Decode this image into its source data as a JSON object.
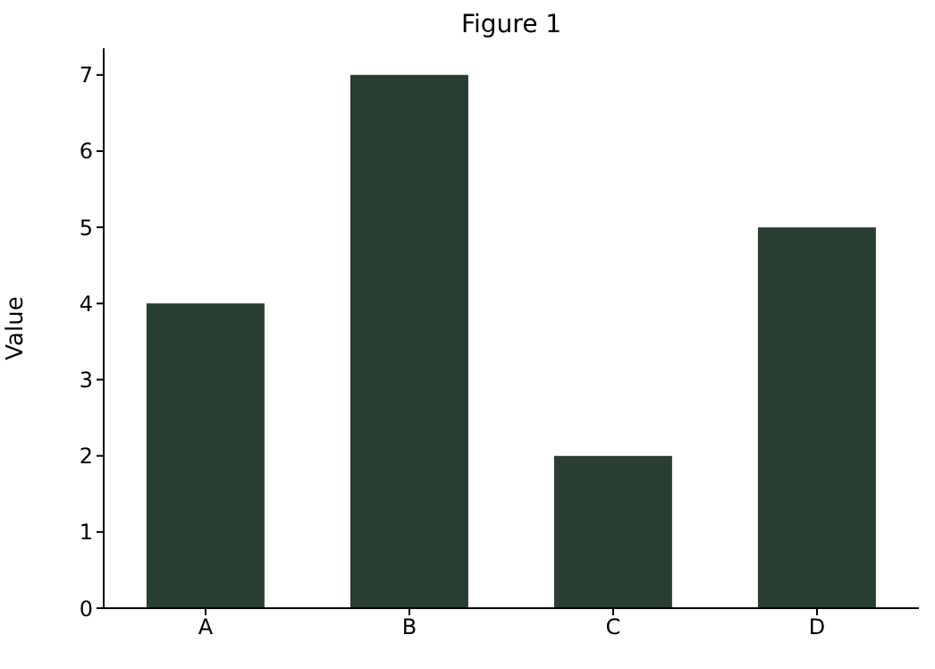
{
  "chart_data": {
    "type": "bar",
    "title": "Figure 1",
    "ylabel": "Value",
    "categories": [
      "A",
      "B",
      "C",
      "D"
    ],
    "values": [
      4,
      7,
      2,
      5
    ],
    "color": "#2a3d33",
    "ylim": [
      0,
      7.35
    ],
    "yticks": [
      0,
      1,
      2,
      3,
      4,
      5,
      6,
      7
    ],
    "grid": false,
    "legend": false
  }
}
